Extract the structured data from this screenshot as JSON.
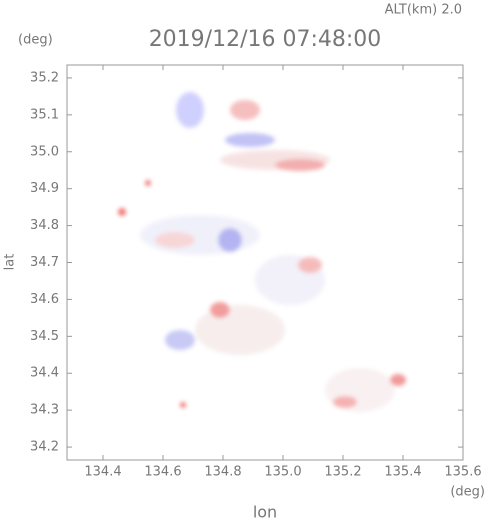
{
  "chart_data": {
    "type": "image",
    "alt_label": "ALT(km) 2.0",
    "title": "2019/12/16 07:48:00",
    "y_unit": "(deg)",
    "x_unit": "(deg)",
    "y_label": "lat",
    "x_label": "lon",
    "xlim": [
      134.28,
      135.6
    ],
    "xticks": [
      134.4,
      134.6,
      134.8,
      {
        "value": 135.0,
        "label": "135.0"
      },
      135.2,
      135.4,
      135.6
    ],
    "ylim": [
      34.165,
      35.235
    ],
    "yticks": [
      34.2,
      34.3,
      34.4,
      34.5,
      34.6,
      34.7,
      34.8,
      34.9,
      {
        "value": 35.0,
        "label": "35.0"
      },
      35.1,
      35.2
    ]
  }
}
